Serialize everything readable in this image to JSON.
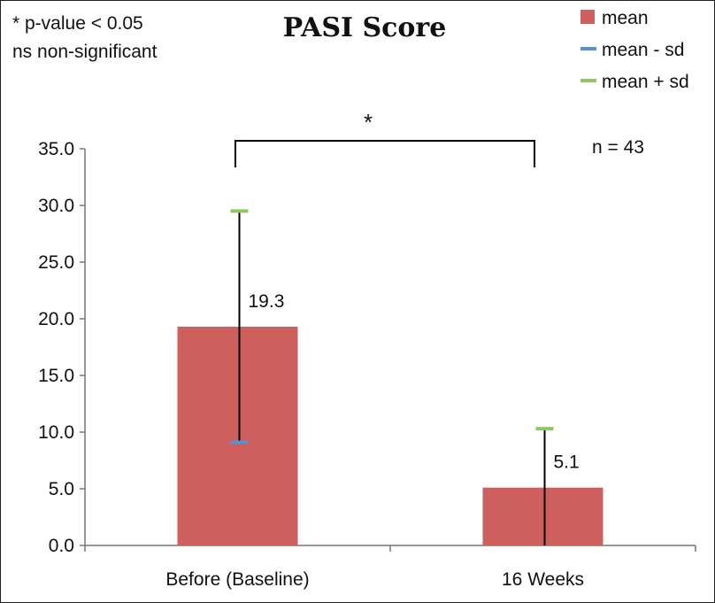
{
  "chart_data": {
    "type": "bar",
    "title": "PASI Score",
    "notes": [
      "* p-value < 0.05",
      "ns non-significant"
    ],
    "sample_size": "n = 43",
    "significance_marker": "*",
    "categories": [
      "Before (Baseline)",
      "16 Weeks"
    ],
    "series": [
      {
        "name": "mean",
        "values": [
          19.3,
          5.1
        ],
        "color": "#cd5f5c"
      },
      {
        "name": "mean - sd",
        "values": [
          9.1,
          0.0
        ],
        "color": "#5b8fcf"
      },
      {
        "name": "mean + sd",
        "values": [
          29.5,
          10.3
        ],
        "color": "#8fc862"
      }
    ],
    "value_labels": [
      "19.3",
      "5.1"
    ],
    "y_ticks": [
      "0.0",
      "5.0",
      "10.0",
      "15.0",
      "20.0",
      "25.0",
      "30.0",
      "35.0"
    ],
    "ylim": [
      0,
      35
    ],
    "grid": false,
    "legend_position": "top-right",
    "errorbar_color": "#000000"
  }
}
